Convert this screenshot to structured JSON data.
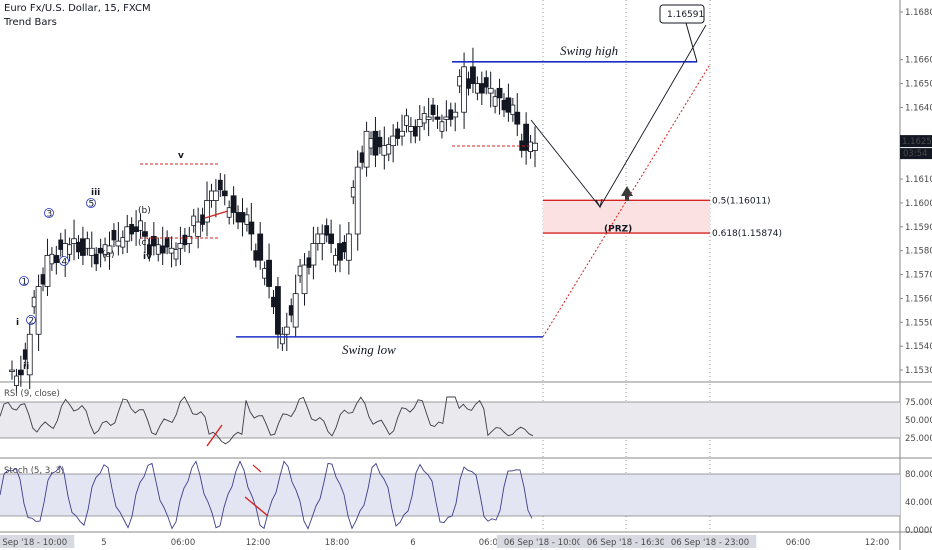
{
  "header": {
    "symbol_line": "Euro Fx/U.S. Dollar, 15, FXCM",
    "style_line": "Trend Bars"
  },
  "price_axis": {
    "ticks": [
      "1.16800",
      "1.16600",
      "1.16500",
      "1.16400",
      "1.16200",
      "1.16100",
      "1.16000",
      "1.15900",
      "1.15800",
      "1.15700",
      "1.15600",
      "1.15500",
      "1.15400",
      "1.15300"
    ],
    "tick_values": [
      1.168,
      1.166,
      1.165,
      1.164,
      1.162,
      1.161,
      1.16,
      1.159,
      1.158,
      1.157,
      1.156,
      1.155,
      1.154,
      1.153
    ],
    "last_price": "1.16259",
    "countdown": "03:54",
    "ymin": 1.1525,
    "ymax": 1.1685
  },
  "time_axis": {
    "ticks": [
      "03 Sep '18 - 10:00",
      "5",
      "06:00",
      "12:00",
      "18:00",
      "6",
      "06:00",
      "06 Sep '18 - 10:00",
      "06 Sep '18 - 16:30",
      "06 Sep '18 - 23:00",
      "06:00",
      "12:00"
    ],
    "highlighted": [
      "03 Sep '18 - 10:00",
      "06 Sep '18 - 10:00",
      "06 Sep '18 - 16:30",
      "06 Sep '18 - 23:00"
    ]
  },
  "annotations": {
    "swing_high": "Swing high",
    "swing_low": "Swing low",
    "swing_high_price": "1.16591",
    "fib_05": "0.5(1.16011)",
    "fib_0618": "0.618(1.15874)",
    "prz": "(PRZ)",
    "waves_red": [
      "i",
      "ii",
      "iii",
      "iv",
      "v"
    ],
    "waves_blue": [
      "1",
      "2",
      "3",
      "4",
      "5"
    ],
    "waves_abc": [
      "(a)",
      "(b)",
      "(c)"
    ]
  },
  "rsi": {
    "title": "RSI (9, close)",
    "ticks": [
      "75.0000",
      "50.0000",
      "25.0000"
    ],
    "band": [
      25,
      75
    ]
  },
  "stoch": {
    "title": "Stoch (5, 3, 3)",
    "ticks": [
      "80.0000",
      "40.0000",
      "0.0000"
    ],
    "band": [
      20,
      80
    ]
  },
  "chart_data": {
    "type": "candlestick",
    "symbol": "EUR/USD",
    "interval": "15",
    "close": [
      1.153,
      1.1528,
      1.1545,
      1.1565,
      1.1578,
      1.1575,
      1.1583,
      1.1585,
      1.1578,
      1.1581,
      1.1579,
      1.1582,
      1.1584,
      1.159,
      1.1588,
      1.1586,
      1.1582,
      1.1579,
      1.1581,
      1.1583,
      1.1586,
      1.1592,
      1.1601,
      1.1605,
      1.1603,
      1.1596,
      1.1592,
      1.1587,
      1.1576,
      1.1565,
      1.1545,
      1.1548,
      1.1562,
      1.1574,
      1.1583,
      1.1587,
      1.1583,
      1.1576,
      1.1587,
      1.1615,
      1.163,
      1.162,
      1.1624,
      1.1628,
      1.163,
      1.1632,
      1.1635,
      1.1636,
      1.1635,
      1.1636,
      1.1638,
      1.1657,
      1.165,
      1.1646,
      1.1648,
      1.1644,
      1.1638,
      1.1633,
      1.1622,
      1.1625
    ],
    "levels": {
      "swing_high": 1.16591,
      "swing_low": 1.15439,
      "fib_0.5": 1.16011,
      "fib_0.618": 1.15874,
      "last": 1.16259
    }
  },
  "colors": {
    "up": "#2b2b2b",
    "down": "#131722",
    "swing_line": "#1a2ec4",
    "fib_line": "#d42323",
    "prz_fill": "#fbe1e1",
    "band_rsi": "#e9e9ee",
    "band_stoch": "#e3e5f3",
    "osc_line": "#3d3d4a",
    "stoch_line": "#3d3f8c"
  }
}
